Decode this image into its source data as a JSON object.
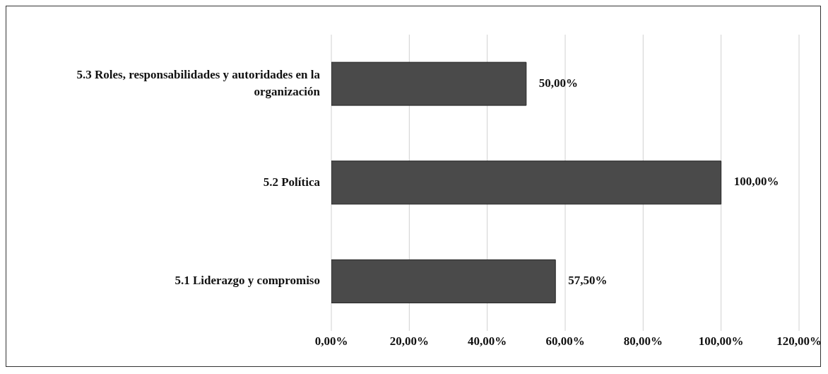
{
  "chart_data": {
    "type": "bar",
    "orientation": "horizontal",
    "categories": [
      "5.3 Roles, responsabilidades y autoridades en la organización",
      "5.2 Política",
      "5.1 Liderazgo y compromiso"
    ],
    "values": [
      50,
      100,
      57.5
    ],
    "value_labels": [
      "50,00%",
      "100,00%",
      "57,50%"
    ],
    "color": "#4a4a4a",
    "xlim": [
      0,
      120
    ],
    "xticks": [
      {
        "value": 0,
        "label": "0,00%"
      },
      {
        "value": 20,
        "label": "20,00%"
      },
      {
        "value": 40,
        "label": "40,00%"
      },
      {
        "value": 60,
        "label": "60,00%"
      },
      {
        "value": 80,
        "label": "80,00%"
      },
      {
        "value": 100,
        "label": "100,00%"
      },
      {
        "value": 120,
        "label": "120,00%"
      }
    ],
    "grid": "x"
  }
}
